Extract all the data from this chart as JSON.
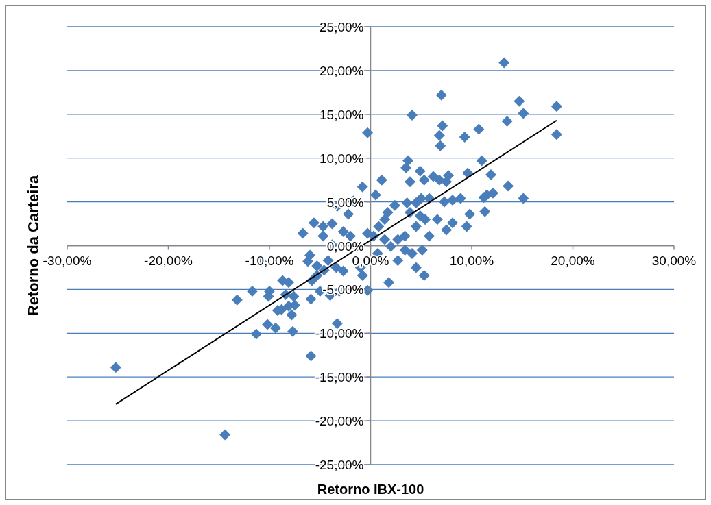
{
  "chart_data": {
    "type": "scatter",
    "xlabel": "Retorno IBX-100",
    "ylabel": "Retorno da Carteira",
    "xlim": [
      -30,
      30
    ],
    "ylim": [
      -25,
      25
    ],
    "xticks": [
      {
        "value": -30,
        "label": "-30,00%"
      },
      {
        "value": -20,
        "label": "-20,00%"
      },
      {
        "value": -10,
        "label": "-10,00%"
      },
      {
        "value": 0,
        "label": "0,00%"
      },
      {
        "value": 10,
        "label": "10,00%"
      },
      {
        "value": 20,
        "label": "20,00%"
      },
      {
        "value": 30,
        "label": "30,00%"
      }
    ],
    "yticks": [
      {
        "value": -25,
        "label": "-25,00%"
      },
      {
        "value": -20,
        "label": "-20,00%"
      },
      {
        "value": -15,
        "label": "-15,00%"
      },
      {
        "value": -10,
        "label": "-10,00%"
      },
      {
        "value": -5,
        "label": "-5,00%"
      },
      {
        "value": 0,
        "label": "0,00%"
      },
      {
        "value": 5,
        "label": "5,00%"
      },
      {
        "value": 10,
        "label": "10,00%"
      },
      {
        "value": 15,
        "label": "15,00%"
      },
      {
        "value": 20,
        "label": "20,00%"
      },
      {
        "value": 25,
        "label": "25,00%"
      }
    ],
    "grid": "y",
    "series": [
      {
        "color": "#4a7ebb",
        "marker": "diamond",
        "x": [
          -25.2,
          -14.4,
          13.2,
          7.0,
          14.7,
          18.4,
          4.1,
          13.5,
          15.1,
          7.1,
          10.7,
          -0.3,
          6.8,
          18.4,
          9.3,
          6.9,
          11.0,
          3.7,
          3.5,
          11.9,
          9.6,
          7.7,
          6.2,
          4.9,
          5.3,
          6.8,
          7.5,
          3.9,
          1.1,
          -0.8,
          0.5,
          13.6,
          11.5,
          12.1,
          11.2,
          15.1,
          11.3,
          8.9,
          8.1,
          7.3,
          5.8,
          5.0,
          4.5,
          3.6,
          9.8,
          9.5,
          8.1,
          7.5,
          6.6,
          5.4,
          4.9,
          4.5,
          5.8,
          3.4,
          3.9,
          2.4,
          1.7,
          1.4,
          0.8,
          1.4,
          2.0,
          2.7,
          3.4,
          4.1,
          5.1,
          4.5,
          5.3,
          1.8,
          2.7,
          0.7,
          0.3,
          -0.3,
          -1.0,
          -0.8,
          -0.3,
          -1.4,
          -2.0,
          -2.7,
          -2.2,
          -3.3,
          -1.7,
          -3.8,
          -3.8,
          -4.7,
          -4.2,
          -3.4,
          -2.7,
          -4.6,
          -3.3,
          -3.1,
          -4.0,
          -5.0,
          -5.8,
          -5.3,
          -5.9,
          -5.9,
          -7.6,
          -7.5,
          -7.8,
          -8.1,
          -8.8,
          -9.2,
          -8.4,
          -8.1,
          -8.7,
          -7.7,
          -9.4,
          -10.2,
          -10.0,
          -10.1,
          -11.7,
          -10.8,
          -13.2,
          -11.3,
          -6.7,
          -6.0,
          -6.2,
          -5.6,
          -4.7,
          -5.3
        ],
        "values": [
          -13.9,
          -21.6,
          20.9,
          17.2,
          16.5,
          15.9,
          14.9,
          14.2,
          15.1,
          13.7,
          13.3,
          12.9,
          12.6,
          12.7,
          12.4,
          11.4,
          9.7,
          9.7,
          8.9,
          8.1,
          8.3,
          8.0,
          7.9,
          8.5,
          7.5,
          7.5,
          7.3,
          7.3,
          7.5,
          6.7,
          5.8,
          6.8,
          5.8,
          6.0,
          5.5,
          5.4,
          3.9,
          5.4,
          5.2,
          5.0,
          5.4,
          5.4,
          4.9,
          4.9,
          3.6,
          2.2,
          2.6,
          1.8,
          3.0,
          3.0,
          3.4,
          2.2,
          1.1,
          1.1,
          3.8,
          4.6,
          3.8,
          3.0,
          2.2,
          0.7,
          -0.1,
          0.7,
          -0.5,
          -0.9,
          -0.5,
          -2.5,
          -3.4,
          -4.2,
          -1.7,
          -0.9,
          1.1,
          1.4,
          -2.5,
          -3.4,
          -5.1,
          -0.1,
          1.1,
          1.6,
          3.6,
          4.5,
          5.1,
          2.5,
          0.1,
          1.1,
          -1.7,
          -2.5,
          -2.9,
          -2.8,
          -8.9,
          -5.2,
          -5.7,
          -5.2,
          -4.0,
          -3.4,
          -6.1,
          -12.6,
          -5.8,
          -6.8,
          -7.9,
          -6.9,
          -7.3,
          -7.4,
          -5.6,
          -4.2,
          -4.0,
          -9.8,
          -9.4,
          -9.0,
          -5.2,
          -5.8,
          -5.2,
          -1.8,
          -6.2,
          -10.1,
          1.4,
          -1.1,
          -1.8,
          2.6,
          2.2,
          -2.3
        ]
      },
      {
        "type": "line",
        "color": "#000000",
        "marker": "none",
        "x": [
          -25.2,
          18.4
        ],
        "values": [
          -18.1,
          14.3
        ]
      }
    ]
  }
}
